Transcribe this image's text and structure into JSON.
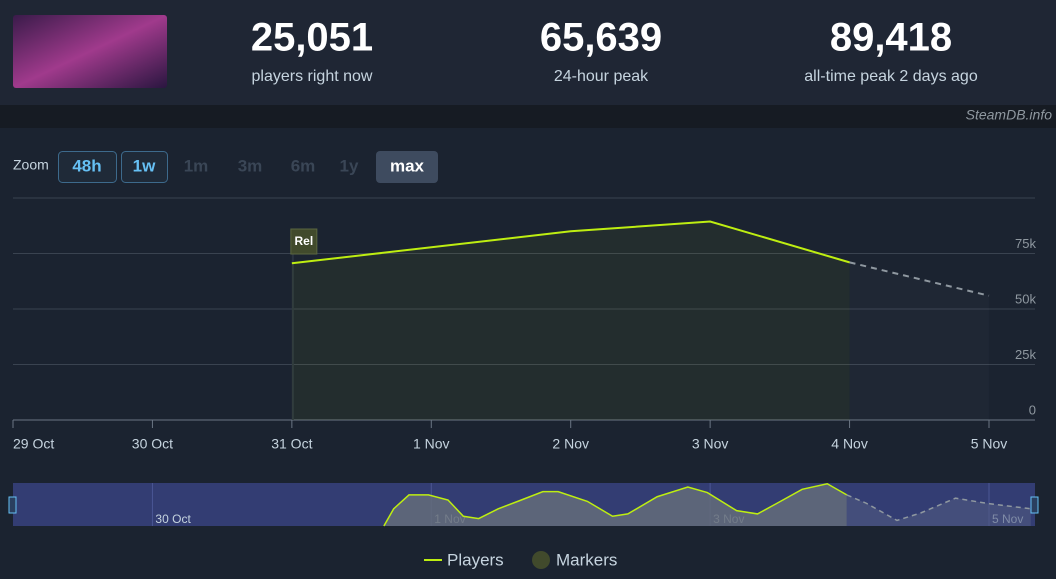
{
  "header": {
    "stats": [
      {
        "value": "25,051",
        "label": "players right now"
      },
      {
        "value": "65,639",
        "label": "24-hour peak"
      },
      {
        "value": "89,418",
        "label": "all-time peak 2 days ago"
      }
    ]
  },
  "watermark": "SteamDB.info",
  "zoom": {
    "label": "Zoom",
    "buttons": [
      "48h",
      "1w",
      "1m",
      "3m",
      "6m",
      "1y",
      "max"
    ]
  },
  "chart_data": {
    "type": "line",
    "xlim": [
      0,
      7.33
    ],
    "ylim": [
      0,
      100000
    ],
    "xticks": [
      {
        "value": 0,
        "label": "29 Oct"
      },
      {
        "value": 1,
        "label": "30 Oct"
      },
      {
        "value": 2,
        "label": "31 Oct"
      },
      {
        "value": 3,
        "label": "1 Nov"
      },
      {
        "value": 4,
        "label": "2 Nov"
      },
      {
        "value": 5,
        "label": "3 Nov"
      },
      {
        "value": 6,
        "label": "4 Nov"
      },
      {
        "value": 7,
        "label": "5 Nov"
      }
    ],
    "yticks": [
      0,
      {
        "value": 25000,
        "label": "25k"
      },
      {
        "value": 50000,
        "label": "50k"
      },
      {
        "value": 75000,
        "label": "75k"
      }
    ],
    "grid": true,
    "series": [
      {
        "name": "Players",
        "color": "#beee11",
        "x": [
          2,
          4,
          5,
          6
        ],
        "values": [
          70600,
          85000,
          89418,
          71000
        ]
      }
    ],
    "projection": {
      "color": "#8f98a0",
      "x": [
        6,
        7
      ],
      "values": [
        71000,
        56000
      ]
    },
    "markers": [
      {
        "label": "Rel",
        "x": 2
      }
    ],
    "markers_legend": "Markers",
    "navigator": {
      "xticks": [
        {
          "value": 1,
          "label": "30 Oct"
        },
        {
          "value": 3,
          "label": "1 Nov"
        },
        {
          "value": 5,
          "label": "3 Nov"
        },
        {
          "value": 7,
          "label": "5 Nov"
        }
      ],
      "x": [
        2.66,
        2.73,
        2.84,
        2.98,
        3.12,
        3.23,
        3.34,
        3.48,
        3.62,
        3.8,
        3.91,
        4.12,
        4.3,
        4.41,
        4.62,
        4.84,
        4.98,
        5.19,
        5.34,
        5.48,
        5.66,
        5.84,
        5.98
      ],
      "values": [
        0,
        37000,
        67000,
        67000,
        56000,
        21000,
        16000,
        37000,
        53000,
        74000,
        74000,
        53000,
        21000,
        26000,
        63000,
        84000,
        72000,
        33000,
        26000,
        49000,
        79000,
        91000,
        67000
      ],
      "projection": {
        "x": [
          5.98,
          6.12,
          6.34,
          6.51,
          6.76,
          6.98,
          7.3
        ],
        "values": [
          67000,
          49000,
          12000,
          28000,
          60000,
          49000,
          37000
        ]
      }
    }
  }
}
